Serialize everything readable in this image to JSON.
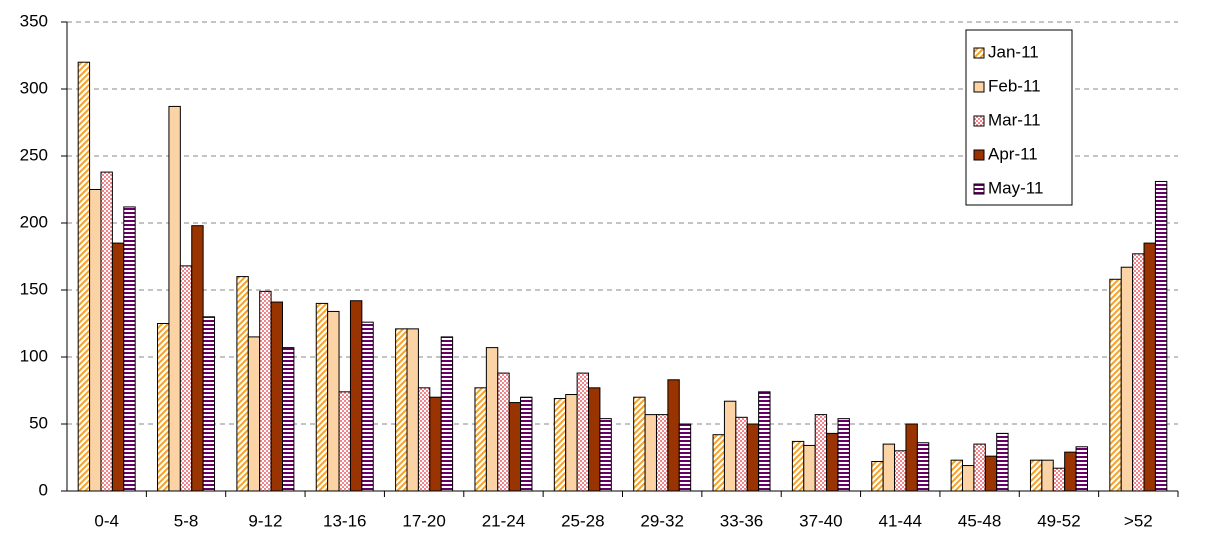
{
  "chart_data": {
    "type": "bar",
    "categories": [
      "0-4",
      "5-8",
      "9-12",
      "13-16",
      "17-20",
      "21-24",
      "25-28",
      "29-32",
      "33-36",
      "37-40",
      "41-44",
      "45-48",
      "49-52",
      ">52"
    ],
    "series": [
      {
        "name": "Jan-11",
        "color": "#f5a028",
        "pattern": "diagonal",
        "values": [
          320,
          125,
          160,
          140,
          121,
          77,
          69,
          70,
          42,
          37,
          22,
          23,
          23,
          158
        ]
      },
      {
        "name": "Feb-11",
        "color": "#fcd3a4",
        "pattern": "solid",
        "values": [
          225,
          287,
          115,
          134,
          121,
          107,
          72,
          57,
          67,
          34,
          35,
          19,
          23,
          167
        ]
      },
      {
        "name": "Mar-11",
        "color": "#f2848c",
        "pattern": "checker",
        "values": [
          238,
          168,
          149,
          74,
          77,
          88,
          88,
          57,
          55,
          57,
          30,
          35,
          17,
          177
        ]
      },
      {
        "name": "Apr-11",
        "color": "#993300",
        "pattern": "solid",
        "values": [
          185,
          198,
          141,
          142,
          70,
          66,
          77,
          83,
          50,
          43,
          50,
          26,
          29,
          185
        ]
      },
      {
        "name": "May-11",
        "color": "#660066",
        "pattern": "horizontal",
        "values": [
          212,
          130,
          107,
          126,
          115,
          70,
          54,
          50,
          74,
          54,
          36,
          43,
          33,
          231
        ]
      }
    ],
    "ylim": [
      0,
      350
    ],
    "yticks": [
      0,
      50,
      100,
      150,
      200,
      250,
      300,
      350
    ],
    "grid": true,
    "legend": "top-right"
  }
}
